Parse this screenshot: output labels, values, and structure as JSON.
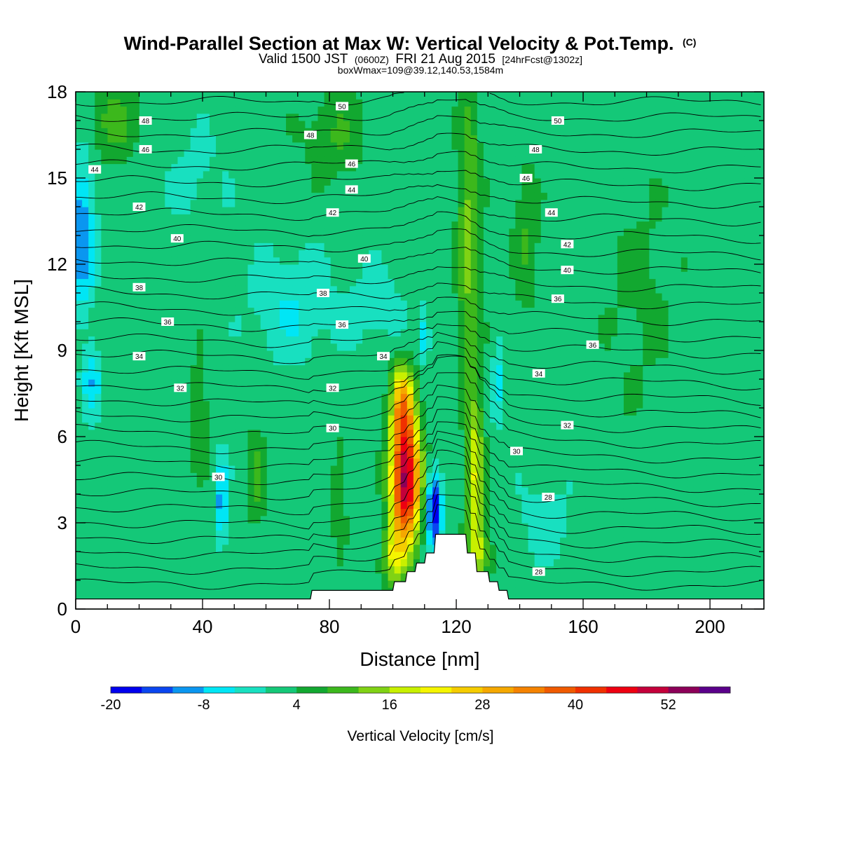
{
  "title": {
    "main": "Wind-Parallel Section at Max W: Vertical Velocity & Pot.Temp.",
    "main_suffix": "(C)",
    "valid_prefix": "Valid 1500 JST",
    "valid_utc": "(0600Z)",
    "valid_date": "FRI 21 Aug 2015",
    "valid_fcst": "[24hrFcst@1302z]",
    "box_info": "boxWmax=109@39.12,140.53,1584m"
  },
  "colorbar": {
    "title": "Vertical Velocity [cm/s]",
    "labels": [
      "-20",
      "-8",
      "4",
      "16",
      "28",
      "40",
      "52"
    ],
    "label_values": [
      -20,
      -8,
      4,
      16,
      28,
      40,
      52
    ],
    "min": -20,
    "step": 4,
    "colors": [
      "#0000ee",
      "#0a46f0",
      "#0a96f0",
      "#00e6f5",
      "#18e0c0",
      "#14c878",
      "#12a830",
      "#3cb81c",
      "#80d214",
      "#c8f000",
      "#f5f500",
      "#f5cc00",
      "#f5a800",
      "#f58200",
      "#f05a00",
      "#f03000",
      "#ee0010",
      "#c4003a",
      "#8c0058",
      "#5a008a"
    ]
  },
  "chart_data": {
    "type": "heatmap",
    "title": "Wind-Parallel Section at Max W: Vertical Velocity & Pot.Temp.",
    "xlabel": "Distance [nm]",
    "ylabel": "Height [Kft MSL]",
    "xlim": [
      0,
      217
    ],
    "ylim": [
      0,
      18
    ],
    "x_ticks": [
      0,
      40,
      80,
      120,
      160,
      200
    ],
    "y_ticks": [
      0,
      3,
      6,
      9,
      12,
      15,
      18
    ],
    "x_tick_labels": [
      "0",
      "40",
      "80",
      "120",
      "160",
      "200"
    ],
    "y_tick_labels": [
      "0",
      "3",
      "6",
      "9",
      "12",
      "15",
      "18"
    ],
    "field": "Vertical Velocity [cm/s]",
    "contour_field": "Potential Temperature [C]",
    "background_value": 2,
    "features": [
      {
        "x": 104,
        "y": 4.5,
        "sx": 4.5,
        "sy": 2.2,
        "amp": 52
      },
      {
        "x": 103,
        "y": 7.2,
        "sx": 3.5,
        "sy": 1.4,
        "amp": 22
      },
      {
        "x": 100,
        "y": 1.8,
        "sx": 3.5,
        "sy": 1.0,
        "amp": 14
      },
      {
        "x": 126,
        "y": 4.5,
        "sx": 2.5,
        "sy": 3.0,
        "amp": 18
      },
      {
        "x": 124,
        "y": 13.0,
        "sx": 3.5,
        "sy": 5.0,
        "amp": 12
      },
      {
        "x": 128,
        "y": 2.0,
        "sx": 3.5,
        "sy": 1.0,
        "amp": 10
      },
      {
        "x": 113,
        "y": 3.5,
        "sx": 2.5,
        "sy": 1.3,
        "amp": -22
      },
      {
        "x": 110,
        "y": 9.5,
        "sx": 1.5,
        "sy": 1.0,
        "amp": -10
      },
      {
        "x": 133,
        "y": 8.0,
        "sx": 1.5,
        "sy": 1.5,
        "amp": -8
      },
      {
        "x": 46,
        "y": 3.8,
        "sx": 2.0,
        "sy": 1.5,
        "amp": -12
      },
      {
        "x": 2,
        "y": 13.0,
        "sx": 4.0,
        "sy": 2.5,
        "amp": -14
      },
      {
        "x": 5,
        "y": 8.0,
        "sx": 3.0,
        "sy": 1.2,
        "amp": -9
      },
      {
        "x": 68,
        "y": 10.5,
        "sx": 13.0,
        "sy": 2.0,
        "amp": -6
      },
      {
        "x": 95,
        "y": 10.5,
        "sx": 10.0,
        "sy": 1.5,
        "amp": -4
      },
      {
        "x": 148,
        "y": 3.0,
        "sx": 10.0,
        "sy": 1.5,
        "amp": -4
      },
      {
        "x": 57,
        "y": 4.5,
        "sx": 3.0,
        "sy": 1.8,
        "amp": 7
      },
      {
        "x": 39,
        "y": 6.8,
        "sx": 3.0,
        "sy": 2.0,
        "amp": 6
      },
      {
        "x": 12,
        "y": 17.0,
        "sx": 8.0,
        "sy": 1.5,
        "amp": 7
      },
      {
        "x": 82,
        "y": 16.5,
        "sx": 10.0,
        "sy": 1.5,
        "amp": 6
      },
      {
        "x": 142,
        "y": 13.0,
        "sx": 4.0,
        "sy": 2.5,
        "amp": 6
      },
      {
        "x": 83,
        "y": 4.0,
        "sx": 2.0,
        "sy": 2.0,
        "amp": 6
      },
      {
        "x": 178,
        "y": 11.0,
        "sx": 12.0,
        "sy": 4.0,
        "amp": 3
      },
      {
        "x": 38,
        "y": 15.0,
        "sx": 10.0,
        "sy": 2.0,
        "amp": -3
      }
    ],
    "terrain": [
      [
        0,
        0.35
      ],
      [
        74,
        0.35
      ],
      [
        74.5,
        0.65
      ],
      [
        100,
        0.65
      ],
      [
        100.5,
        0.95
      ],
      [
        104,
        0.95
      ],
      [
        104.5,
        1.3
      ],
      [
        107,
        1.3
      ],
      [
        107.5,
        1.6
      ],
      [
        110,
        1.6
      ],
      [
        110.5,
        1.95
      ],
      [
        113,
        1.95
      ],
      [
        113.5,
        2.6
      ],
      [
        123,
        2.6
      ],
      [
        123.5,
        1.95
      ],
      [
        126,
        1.95
      ],
      [
        126.5,
        1.3
      ],
      [
        130,
        1.3
      ],
      [
        130.5,
        0.95
      ],
      [
        133,
        0.95
      ],
      [
        133.5,
        0.65
      ],
      [
        136,
        0.65
      ],
      [
        136.5,
        0.35
      ],
      [
        217,
        0.35
      ]
    ],
    "theta_contours": {
      "levels_start": 23,
      "levels_end": 51,
      "interval": 1
    },
    "theta_labels": [
      {
        "text": "50",
        "x": 84,
        "y": 17.5
      },
      {
        "text": "48",
        "x": 22,
        "y": 17.0
      },
      {
        "text": "48",
        "x": 74,
        "y": 16.5
      },
      {
        "text": "50",
        "x": 152,
        "y": 17.0
      },
      {
        "text": "48",
        "x": 145,
        "y": 16.0
      },
      {
        "text": "46",
        "x": 22,
        "y": 16.0
      },
      {
        "text": "46",
        "x": 87,
        "y": 15.5
      },
      {
        "text": "46",
        "x": 142,
        "y": 15.0
      },
      {
        "text": "44",
        "x": 6,
        "y": 15.3
      },
      {
        "text": "44",
        "x": 87,
        "y": 14.6
      },
      {
        "text": "44",
        "x": 150,
        "y": 13.8
      },
      {
        "text": "42",
        "x": 20,
        "y": 14.0
      },
      {
        "text": "42",
        "x": 81,
        "y": 13.8
      },
      {
        "text": "42",
        "x": 155,
        "y": 12.7
      },
      {
        "text": "40",
        "x": 32,
        "y": 12.9
      },
      {
        "text": "40",
        "x": 91,
        "y": 12.2
      },
      {
        "text": "40",
        "x": 155,
        "y": 11.8
      },
      {
        "text": "38",
        "x": 20,
        "y": 11.2
      },
      {
        "text": "38",
        "x": 78,
        "y": 11.0
      },
      {
        "text": "36",
        "x": 152,
        "y": 10.8
      },
      {
        "text": "36",
        "x": 29,
        "y": 10.0
      },
      {
        "text": "36",
        "x": 84,
        "y": 9.9
      },
      {
        "text": "36",
        "x": 163,
        "y": 9.2
      },
      {
        "text": "34",
        "x": 20,
        "y": 8.8
      },
      {
        "text": "34",
        "x": 97,
        "y": 8.8
      },
      {
        "text": "34",
        "x": 146,
        "y": 8.2
      },
      {
        "text": "32",
        "x": 33,
        "y": 7.7
      },
      {
        "text": "32",
        "x": 81,
        "y": 7.7
      },
      {
        "text": "32",
        "x": 155,
        "y": 6.4
      },
      {
        "text": "30",
        "x": 81,
        "y": 6.3
      },
      {
        "text": "30",
        "x": 139,
        "y": 5.5
      },
      {
        "text": "30",
        "x": 45,
        "y": 4.6
      },
      {
        "text": "28",
        "x": 149,
        "y": 3.9
      },
      {
        "text": "28",
        "x": 146,
        "y": 1.3
      }
    ]
  }
}
